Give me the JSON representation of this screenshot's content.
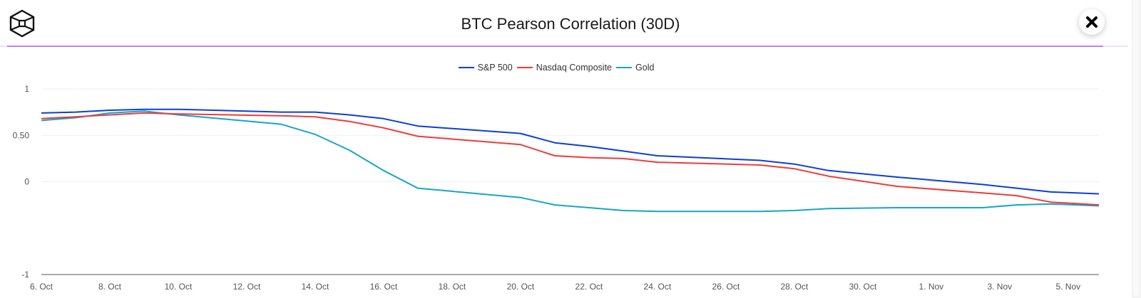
{
  "header": {
    "title": "BTC Pearson Correlation (30D)",
    "logo_icon": "cube-logo-icon",
    "close_icon": "close-icon"
  },
  "chart_data": {
    "type": "line",
    "title": "BTC Pearson Correlation (30D)",
    "xlabel": "",
    "ylabel": "",
    "ylim": [
      -1,
      1
    ],
    "y_ticks": [
      {
        "value": 1,
        "label": "1"
      },
      {
        "value": 0.5,
        "label": "0.50"
      },
      {
        "value": 0,
        "label": "0"
      },
      {
        "value": -1,
        "label": "-1"
      }
    ],
    "x_range_days": [
      0,
      30.9
    ],
    "x_ticks": [
      {
        "day": 0,
        "label": "6. Oct"
      },
      {
        "day": 2,
        "label": "8. Oct"
      },
      {
        "day": 4,
        "label": "10. Oct"
      },
      {
        "day": 6,
        "label": "12. Oct"
      },
      {
        "day": 8,
        "label": "14. Oct"
      },
      {
        "day": 10,
        "label": "16. Oct"
      },
      {
        "day": 12,
        "label": "18. Oct"
      },
      {
        "day": 14,
        "label": "20. Oct"
      },
      {
        "day": 16,
        "label": "22. Oct"
      },
      {
        "day": 18,
        "label": "24. Oct"
      },
      {
        "day": 20,
        "label": "26. Oct"
      },
      {
        "day": 22,
        "label": "28. Oct"
      },
      {
        "day": 24,
        "label": "30. Oct"
      },
      {
        "day": 26,
        "label": "1. Nov"
      },
      {
        "day": 28,
        "label": "3. Nov"
      },
      {
        "day": 30,
        "label": "5. Nov"
      }
    ],
    "grid": true,
    "legend_position": "top-center",
    "x": [
      0,
      1,
      2,
      3,
      4,
      7,
      8,
      9,
      10,
      11,
      14,
      15,
      16,
      17,
      18,
      21,
      22,
      23,
      25,
      27.5,
      28.5,
      29.5,
      30.9
    ],
    "series": [
      {
        "name": "S&P 500",
        "color": "#0b3fd6",
        "values": [
          0.74,
          0.75,
          0.77,
          0.78,
          0.78,
          0.75,
          0.75,
          0.72,
          0.68,
          0.6,
          0.52,
          0.42,
          0.38,
          0.33,
          0.28,
          0.23,
          0.19,
          0.12,
          0.05,
          -0.03,
          -0.07,
          -0.11,
          -0.13
        ]
      },
      {
        "name": "Nasdaq Composite",
        "color": "#ef3b3b",
        "values": [
          0.68,
          0.7,
          0.72,
          0.74,
          0.73,
          0.71,
          0.7,
          0.65,
          0.58,
          0.49,
          0.4,
          0.28,
          0.26,
          0.25,
          0.21,
          0.18,
          0.14,
          0.06,
          -0.05,
          -0.12,
          -0.15,
          -0.22,
          -0.25
        ]
      },
      {
        "name": "Gold",
        "color": "#16a6c6",
        "values": [
          0.66,
          0.69,
          0.74,
          0.76,
          0.72,
          0.62,
          0.51,
          0.34,
          0.12,
          -0.07,
          -0.17,
          -0.25,
          -0.28,
          -0.31,
          -0.32,
          -0.32,
          -0.31,
          -0.29,
          -0.28,
          -0.28,
          -0.25,
          -0.24,
          -0.26
        ]
      }
    ]
  }
}
